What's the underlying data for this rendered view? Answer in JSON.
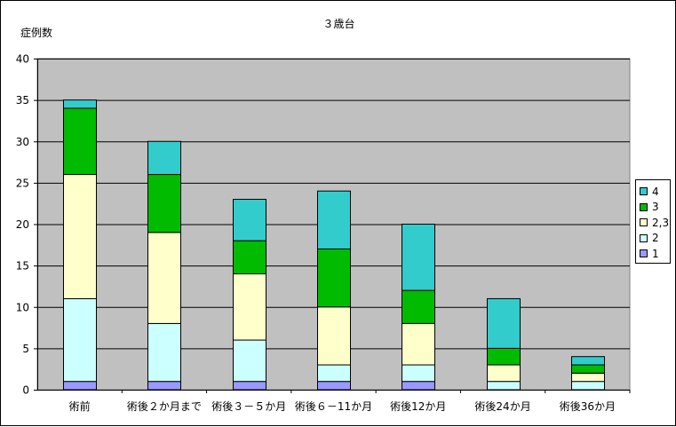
{
  "chart_data": {
    "type": "bar",
    "stacked": true,
    "title": "３歳台",
    "ylabel": "症例数",
    "xlabel": "",
    "ylim": [
      0,
      40
    ],
    "yticks": [
      0,
      5,
      10,
      15,
      20,
      25,
      30,
      35,
      40
    ],
    "grid": true,
    "legend_position": "right",
    "categories": [
      "術前",
      "術後２か月まで",
      "術後３－５か月",
      "術後６－11か月",
      "術後12か月",
      "術後24か月",
      "術後36か月"
    ],
    "series": [
      {
        "name": "1",
        "color": "#9999ff",
        "values": [
          1,
          1,
          1,
          1,
          1,
          0,
          0
        ]
      },
      {
        "name": "2",
        "color": "#ccffff",
        "values": [
          10,
          7,
          5,
          2,
          2,
          1,
          1
        ]
      },
      {
        "name": "2,3",
        "color": "#ffffcc",
        "values": [
          15,
          11,
          8,
          7,
          5,
          2,
          1
        ]
      },
      {
        "name": "3",
        "color": "#00bb00",
        "values": [
          8,
          7,
          4,
          7,
          4,
          2,
          1
        ]
      },
      {
        "name": "4",
        "color": "#33cccc",
        "values": [
          1,
          4,
          5,
          7,
          8,
          6,
          1
        ]
      }
    ]
  }
}
